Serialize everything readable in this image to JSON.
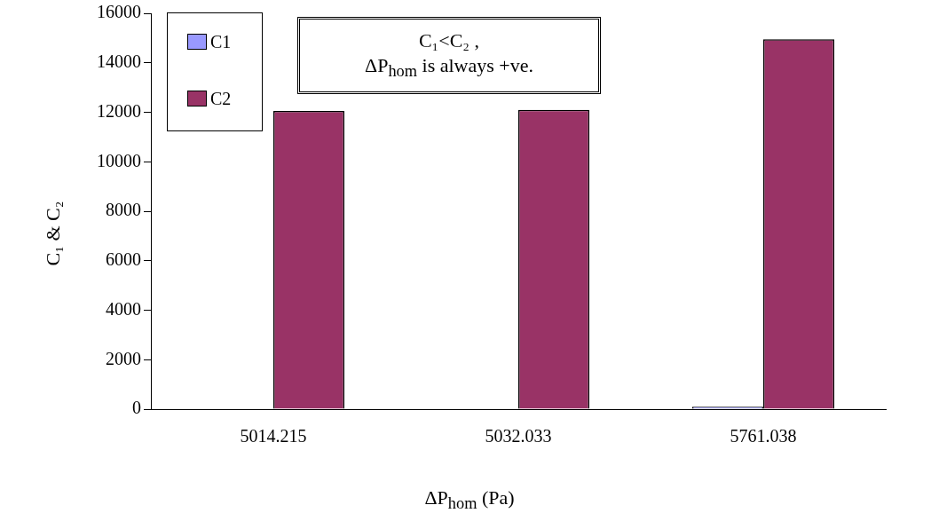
{
  "chart_data": {
    "type": "bar",
    "categories": [
      "5014.215",
      "5032.033",
      "5761.038"
    ],
    "series": [
      {
        "name": "C1",
        "color": "#9999ff",
        "values": [
          0,
          0,
          100
        ]
      },
      {
        "name": "C2",
        "color": "#993366",
        "values": [
          12050,
          12100,
          14950
        ]
      }
    ],
    "xlabel": "ΔP$_{hom}$ (Pa)",
    "ylabel": "C₁ & C₂",
    "ylim": [
      0,
      16000
    ],
    "yticks": [
      0,
      2000,
      4000,
      6000,
      8000,
      10000,
      12000,
      14000,
      16000
    ],
    "annotations": [
      "C₁<C₂ ,\nΔP$_{hom}$ is always +ve."
    ],
    "legend": "top left",
    "grid": false
  }
}
